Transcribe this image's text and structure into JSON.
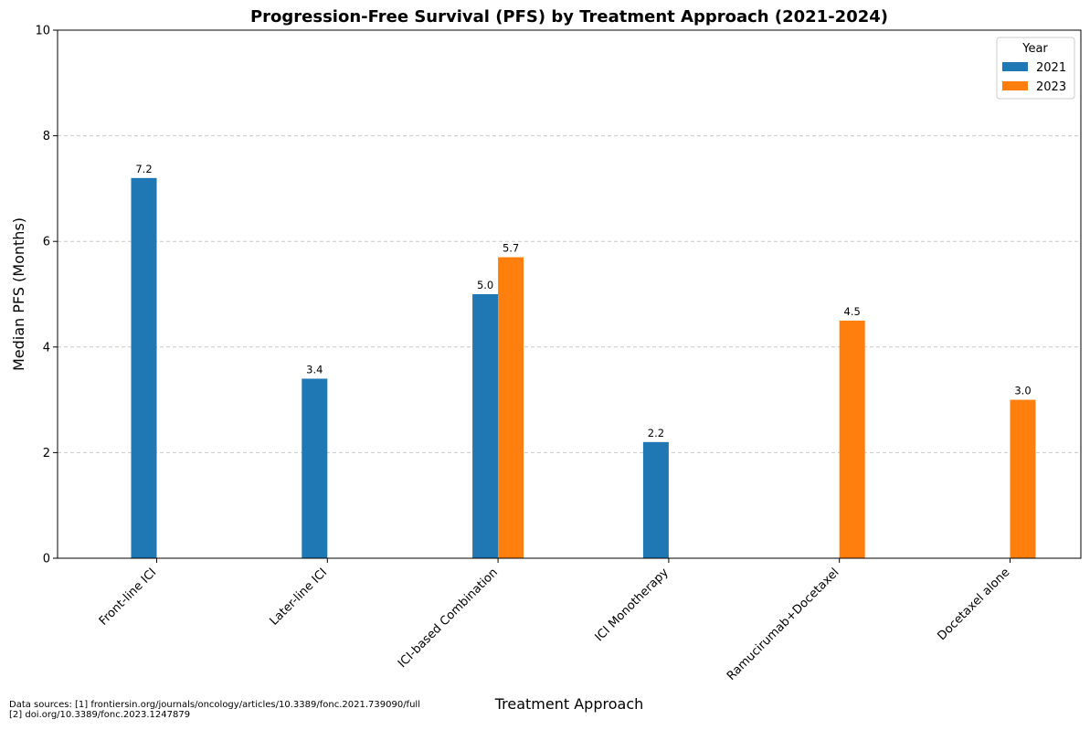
{
  "chart_data": {
    "type": "bar",
    "title": "Progression-Free Survival (PFS) by Treatment Approach (2021-2024)",
    "xlabel": "Treatment Approach",
    "ylabel": "Median PFS (Months)",
    "ylim": [
      0,
      10
    ],
    "yticks": [
      0,
      2,
      4,
      6,
      8,
      10
    ],
    "grid": "y-dashed",
    "categories": [
      "Front-line ICI",
      "Later-line ICI",
      "ICI-based Combination",
      "ICI Monotherapy",
      "Ramucirumab+Docetaxel",
      "Docetaxel alone"
    ],
    "series": [
      {
        "name": "2021",
        "color": "#1f77b4",
        "values": [
          7.2,
          3.4,
          5.0,
          2.2,
          null,
          null
        ]
      },
      {
        "name": "2023",
        "color": "#ff7f0e",
        "values": [
          null,
          null,
          5.7,
          null,
          4.5,
          3.0
        ]
      }
    ],
    "legend": {
      "title": "Year",
      "placement": "top-right"
    }
  },
  "footnote": {
    "line1": "Data sources: [1] frontiersin.org/journals/oncology/articles/10.3389/fonc.2021.739090/full",
    "line2": "[2] doi.org/10.3389/fonc.2023.1247879"
  }
}
